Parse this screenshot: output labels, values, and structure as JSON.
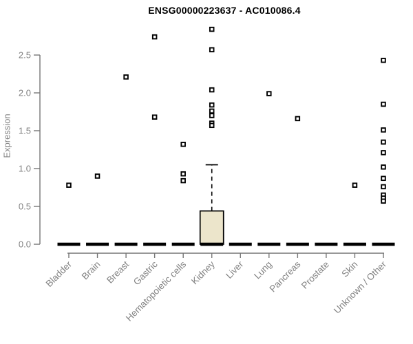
{
  "chart_data": {
    "type": "box",
    "title": "ENSG00000223637 - AC010086.4",
    "ylabel": "Expression",
    "xlabel": "",
    "ylim": [
      0,
      2.9
    ],
    "yticks": [
      "0.0",
      "0.5",
      "1.0",
      "1.5",
      "2.0",
      "2.5"
    ],
    "grid": false,
    "legend": null,
    "categories": [
      "Bladder",
      "Brain",
      "Breast",
      "Gastric",
      "Hematopoietic cells",
      "Kidney",
      "Liver",
      "Lung",
      "Pancreas",
      "Prostate",
      "Skin",
      "Unknown / Other"
    ],
    "series": [
      {
        "category": "Bladder",
        "median": 0.0,
        "q1": 0.0,
        "q3": 0.0,
        "whisker_low": 0.0,
        "whisker_high": 0.0,
        "outliers": [
          0.78
        ]
      },
      {
        "category": "Brain",
        "median": 0.0,
        "q1": 0.0,
        "q3": 0.0,
        "whisker_low": 0.0,
        "whisker_high": 0.0,
        "outliers": [
          0.9
        ]
      },
      {
        "category": "Breast",
        "median": 0.0,
        "q1": 0.0,
        "q3": 0.0,
        "whisker_low": 0.0,
        "whisker_high": 0.0,
        "outliers": [
          2.21
        ]
      },
      {
        "category": "Gastric",
        "median": 0.0,
        "q1": 0.0,
        "q3": 0.0,
        "whisker_low": 0.0,
        "whisker_high": 0.0,
        "outliers": [
          2.74,
          1.68
        ]
      },
      {
        "category": "Hematopoietic cells",
        "median": 0.0,
        "q1": 0.0,
        "q3": 0.0,
        "whisker_low": 0.0,
        "whisker_high": 0.0,
        "outliers": [
          1.32,
          0.93,
          0.84
        ]
      },
      {
        "category": "Kidney",
        "median": 0.0,
        "q1": 0.0,
        "q3": 0.44,
        "whisker_low": 0.0,
        "whisker_high": 1.05,
        "outliers": [
          2.84,
          2.57,
          2.04,
          1.84,
          1.76,
          1.7,
          1.6,
          1.57
        ]
      },
      {
        "category": "Liver",
        "median": 0.0,
        "q1": 0.0,
        "q3": 0.0,
        "whisker_low": 0.0,
        "whisker_high": 0.0,
        "outliers": []
      },
      {
        "category": "Lung",
        "median": 0.0,
        "q1": 0.0,
        "q3": 0.0,
        "whisker_low": 0.0,
        "whisker_high": 0.0,
        "outliers": [
          1.99
        ]
      },
      {
        "category": "Pancreas",
        "median": 0.0,
        "q1": 0.0,
        "q3": 0.0,
        "whisker_low": 0.0,
        "whisker_high": 0.0,
        "outliers": [
          1.66
        ]
      },
      {
        "category": "Prostate",
        "median": 0.0,
        "q1": 0.0,
        "q3": 0.0,
        "whisker_low": 0.0,
        "whisker_high": 0.0,
        "outliers": []
      },
      {
        "category": "Skin",
        "median": 0.0,
        "q1": 0.0,
        "q3": 0.0,
        "whisker_low": 0.0,
        "whisker_high": 0.0,
        "outliers": [
          0.78
        ]
      },
      {
        "category": "Unknown / Other",
        "median": 0.0,
        "q1": 0.0,
        "q3": 0.0,
        "whisker_low": 0.0,
        "whisker_high": 0.0,
        "outliers": [
          2.43,
          1.85,
          1.51,
          1.35,
          1.21,
          1.02,
          0.87,
          0.76,
          0.65,
          0.61,
          0.57
        ]
      }
    ],
    "colors": {
      "box_fill": "#ECE5CB",
      "box_stroke": "#000000",
      "median": "#000000",
      "outlier_stroke": "#000000",
      "outlier_fill": "#ffffff",
      "axis": "#767676",
      "tick_text": "#828282",
      "title_text": "#000000",
      "background": "#ffffff"
    }
  }
}
